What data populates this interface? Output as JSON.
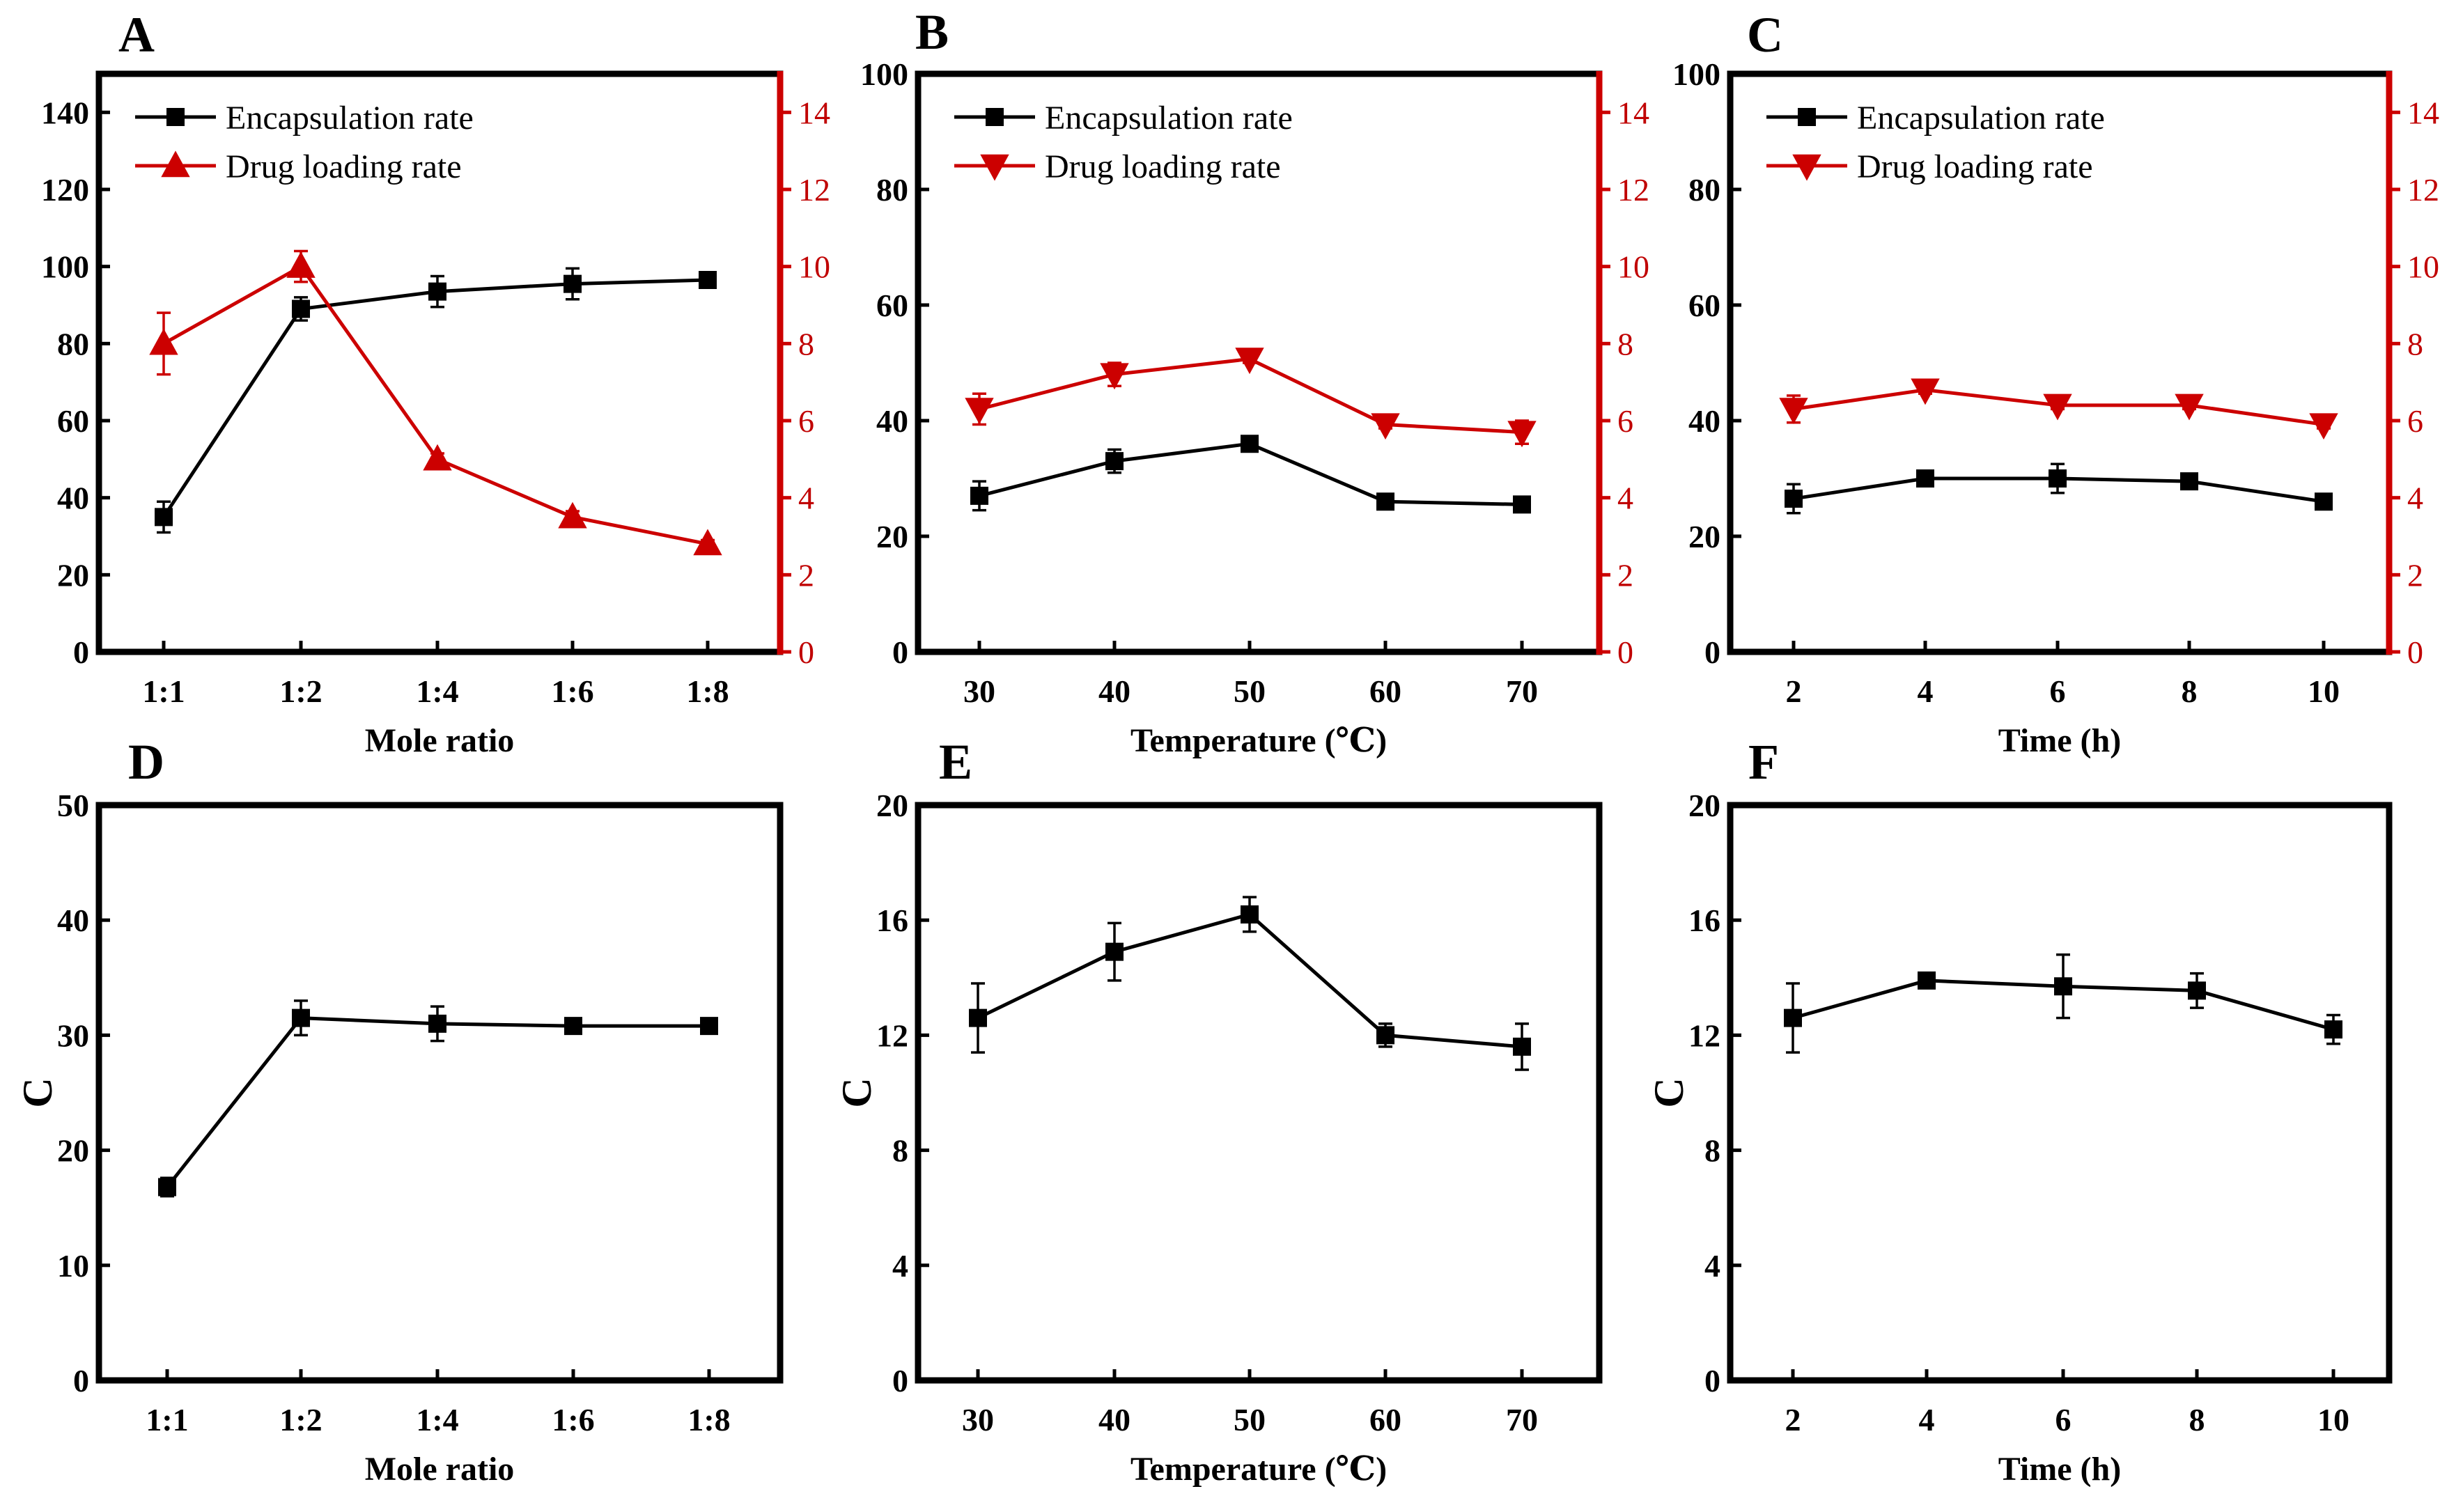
{
  "chart_data": [
    {
      "panel": "A",
      "type": "line",
      "categories": [
        "1:1",
        "1:2",
        "1:4",
        "1:6",
        "1:8"
      ],
      "xlabel": "Mole ratio",
      "ylabel": "",
      "ylim": [
        0,
        150
      ],
      "yticks": [
        0,
        20,
        40,
        60,
        80,
        100,
        120,
        140
      ],
      "y2lim": [
        0,
        15
      ],
      "y2ticks": [
        0,
        2,
        4,
        6,
        8,
        10,
        12,
        14
      ],
      "legend": [
        "Encapsulation rate",
        "Drug loading rate"
      ],
      "series": [
        {
          "name": "Encapsulation rate",
          "axis": "left",
          "color": "#000000",
          "marker": "square",
          "values": [
            35,
            89,
            93.5,
            95.5,
            96.5
          ],
          "errors": [
            4,
            3,
            4,
            4,
            1.5
          ]
        },
        {
          "name": "Drug loading rate",
          "axis": "right",
          "color": "#cc0000",
          "marker": "triangle-up",
          "values": [
            8,
            10,
            5,
            3.5,
            2.8
          ],
          "errors": [
            0.8,
            0.4,
            0.15,
            0.15,
            0.1
          ]
        }
      ]
    },
    {
      "panel": "B",
      "type": "line",
      "categories": [
        "30",
        "40",
        "50",
        "60",
        "70"
      ],
      "xlabel": "Temperature (℃)",
      "ylabel": "",
      "ylim": [
        0,
        100
      ],
      "yticks": [
        0,
        20,
        40,
        60,
        80,
        100
      ],
      "y2lim": [
        0,
        15
      ],
      "y2ticks": [
        0,
        2,
        4,
        6,
        8,
        10,
        12,
        14
      ],
      "legend": [
        "Encapsulation rate",
        "Drug loading rate"
      ],
      "series": [
        {
          "name": "Encapsulation rate",
          "axis": "left",
          "color": "#000000",
          "marker": "square",
          "values": [
            27,
            33,
            36,
            26,
            25.5
          ],
          "errors": [
            2.5,
            2,
            1,
            1,
            1
          ]
        },
        {
          "name": "Drug loading rate",
          "axis": "right",
          "color": "#cc0000",
          "marker": "triangle-down",
          "values": [
            6.3,
            7.2,
            7.6,
            5.9,
            5.7
          ],
          "errors": [
            0.4,
            0.3,
            0.1,
            0.1,
            0.3
          ]
        }
      ]
    },
    {
      "panel": "C",
      "type": "line",
      "categories": [
        "2",
        "4",
        "6",
        "8",
        "10"
      ],
      "xlabel": "Time (h)",
      "ylabel": "",
      "ylim": [
        0,
        100
      ],
      "yticks": [
        0,
        20,
        40,
        60,
        80,
        100
      ],
      "y2lim": [
        0,
        15
      ],
      "y2ticks": [
        0,
        2,
        4,
        6,
        8,
        10,
        12,
        14
      ],
      "legend": [
        "Encapsulation rate",
        "Drug loading rate"
      ],
      "series": [
        {
          "name": "Encapsulation rate",
          "axis": "left",
          "color": "#000000",
          "marker": "square",
          "values": [
            26.5,
            30,
            30,
            29.5,
            26
          ],
          "errors": [
            2.5,
            1,
            2.5,
            1,
            1
          ]
        },
        {
          "name": "Drug loading rate",
          "axis": "right",
          "color": "#cc0000",
          "marker": "triangle-down",
          "values": [
            6.3,
            6.8,
            6.4,
            6.4,
            5.9
          ],
          "errors": [
            0.35,
            0.1,
            0.1,
            0.1,
            0.1
          ]
        }
      ]
    },
    {
      "panel": "D",
      "type": "line",
      "categories": [
        "1:1",
        "1:2",
        "1:4",
        "1:6",
        "1:8"
      ],
      "xlabel": "Mole ratio",
      "ylabel": "C",
      "ylim": [
        0,
        50
      ],
      "yticks": [
        0,
        10,
        20,
        30,
        40,
        50
      ],
      "series": [
        {
          "name": "C",
          "color": "#000000",
          "marker": "square",
          "values": [
            16.8,
            31.5,
            31,
            30.8,
            30.8
          ],
          "errors": [
            0.8,
            1.5,
            1.5,
            0.5,
            0.5
          ]
        }
      ]
    },
    {
      "panel": "E",
      "type": "line",
      "categories": [
        "30",
        "40",
        "50",
        "60",
        "70"
      ],
      "xlabel": "Temperature (℃)",
      "ylabel": "C",
      "ylim": [
        0,
        20
      ],
      "yticks": [
        0,
        4,
        8,
        12,
        16,
        20
      ],
      "series": [
        {
          "name": "C",
          "color": "#000000",
          "marker": "square",
          "values": [
            12.6,
            14.9,
            16.2,
            12,
            11.6
          ],
          "errors": [
            1.2,
            1,
            0.6,
            0.4,
            0.8
          ]
        }
      ]
    },
    {
      "panel": "F",
      "type": "line",
      "categories": [
        "2",
        "4",
        "6",
        "8",
        "10"
      ],
      "xlabel": "Time (h)",
      "ylabel": "C",
      "ylim": [
        0,
        20
      ],
      "yticks": [
        0,
        4,
        8,
        12,
        16,
        20
      ],
      "series": [
        {
          "name": "C",
          "color": "#000000",
          "marker": "square",
          "values": [
            12.6,
            13.9,
            13.7,
            13.55,
            12.2
          ],
          "errors": [
            1.2,
            0.1,
            1.1,
            0.6,
            0.5
          ]
        }
      ]
    }
  ]
}
